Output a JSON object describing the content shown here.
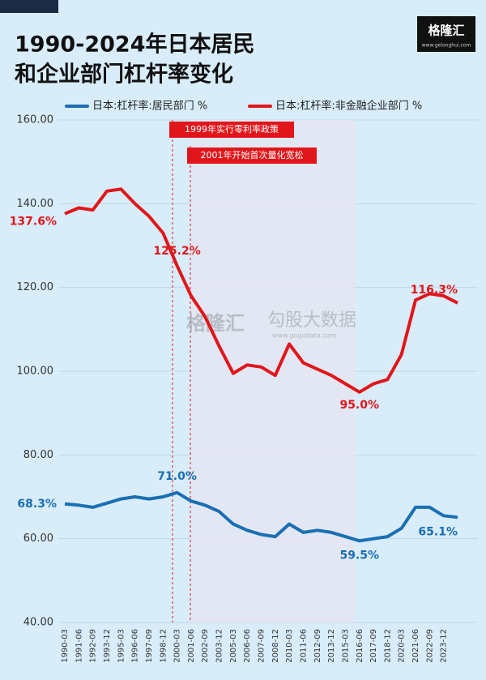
{
  "chart_data": {
    "type": "line",
    "title": [
      "1990-2024年日本居民",
      "和企业部门杠杆率变化"
    ],
    "logo": {
      "name": "格隆汇",
      "url": "www.gelonghui.com"
    },
    "watermark": {
      "name": "格隆汇",
      "brand": "勾股大数据",
      "url": "www.gogudata.com"
    },
    "annotations": [
      "1999年实行零利率政策",
      "2001年开始首次量化宽松"
    ],
    "categories": [
      "1990-03",
      "1991-06",
      "1992-09",
      "1993-12",
      "1995-03",
      "1996-06",
      "1997-09",
      "1998-12",
      "2000-03",
      "2001-06",
      "2002-09",
      "2003-12",
      "2005-03",
      "2006-06",
      "2007-09",
      "2008-12",
      "2010-03",
      "2011-06",
      "2012-09",
      "2013-12",
      "2015-03",
      "2016-06",
      "2017-09",
      "2018-12",
      "2020-03",
      "2021-06",
      "2022-09",
      "2023-12",
      null
    ],
    "series": [
      {
        "name": "日本:杠杆率:居民部门 %",
        "color": "#1a6fb3",
        "values": [
          68.3,
          68,
          67.5,
          68.5,
          69.5,
          70,
          69.5,
          70,
          71.0,
          69,
          68,
          66.5,
          63.5,
          62,
          61,
          60.5,
          63.5,
          61.5,
          62,
          61.5,
          60.5,
          59.5,
          60,
          60.5,
          62.5,
          67.5,
          67.5,
          65.5,
          65.1
        ],
        "value_labels": [
          "68.3%",
          null,
          null,
          null,
          null,
          null,
          null,
          null,
          "71.0%",
          null,
          null,
          null,
          null,
          null,
          null,
          null,
          null,
          null,
          null,
          null,
          null,
          "59.5%",
          null,
          null,
          null,
          null,
          null,
          null,
          "65.1%"
        ]
      },
      {
        "name": "日本:杠杆率:非金融企业部门 %",
        "color": "#e0161b",
        "values": [
          137.6,
          139,
          138.5,
          143,
          143.5,
          140,
          137,
          133,
          125.2,
          118,
          113,
          106,
          99.5,
          101.5,
          101,
          99,
          106.5,
          102,
          100.5,
          99,
          97,
          95.0,
          97,
          98,
          104,
          117,
          118.5,
          118,
          116.3
        ],
        "value_labels": [
          "137.6%",
          null,
          null,
          null,
          null,
          null,
          null,
          null,
          "125.2%",
          null,
          null,
          null,
          null,
          null,
          null,
          null,
          null,
          null,
          null,
          null,
          null,
          "95.0%",
          null,
          null,
          null,
          null,
          null,
          null,
          "116.3%"
        ]
      }
    ],
    "ylim": [
      40,
      160
    ],
    "yticks": [
      {
        "value": 40,
        "label": "40.00"
      },
      {
        "value": 60,
        "label": "60.00"
      },
      {
        "value": 80,
        "label": "80.00"
      },
      {
        "value": 100,
        "label": "100.00"
      },
      {
        "value": 120,
        "label": "120.00"
      },
      {
        "value": 140,
        "label": "140.00"
      },
      {
        "value": 160,
        "label": "160.00"
      }
    ],
    "grid": true
  }
}
